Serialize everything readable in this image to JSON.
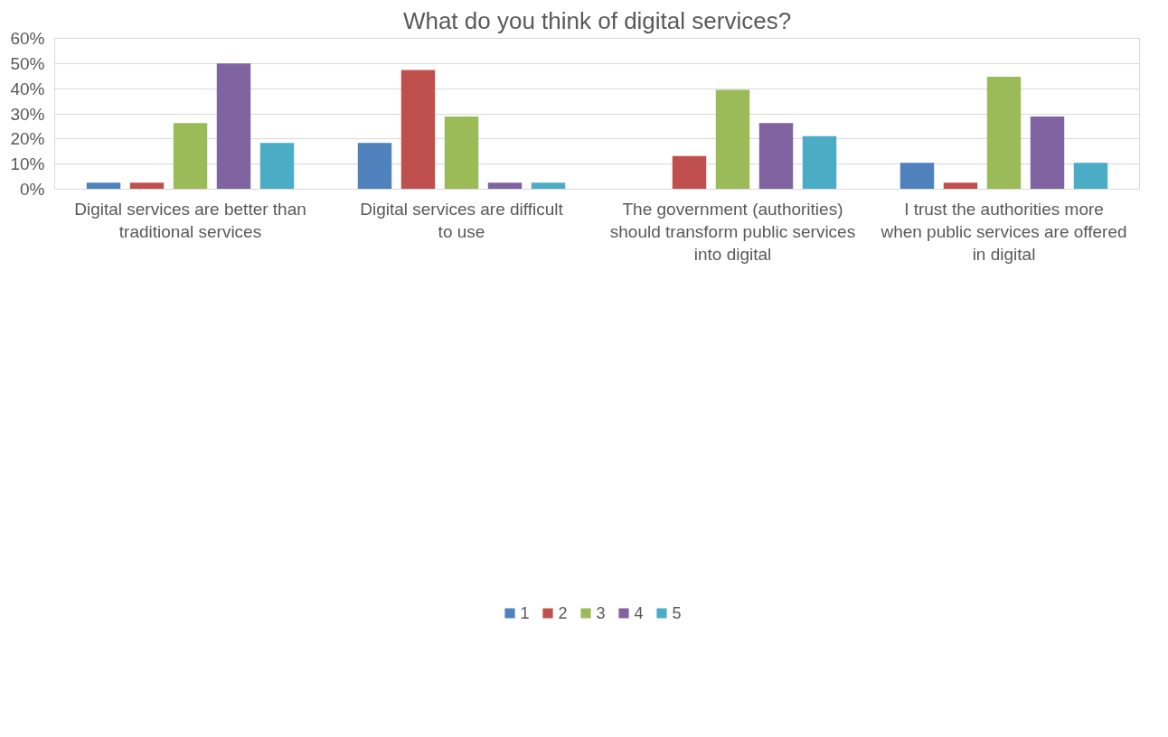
{
  "chart_data": {
    "type": "bar",
    "title": "What do you think of digital services?",
    "categories": [
      "Digital services are better than traditional services",
      "Digital services are difficult to use",
      "The government (authorities) should transform public services into digital",
      "I trust the authorities more when public services are offered in digital"
    ],
    "series": [
      {
        "name": "1",
        "color": "#4f81bd",
        "values": [
          2.6,
          18.4,
          0,
          10.5
        ]
      },
      {
        "name": "2",
        "color": "#c0504d",
        "values": [
          2.6,
          47.4,
          13.2,
          2.6
        ]
      },
      {
        "name": "3",
        "color": "#9bbb59",
        "values": [
          26.3,
          28.9,
          39.5,
          44.7
        ]
      },
      {
        "name": "4",
        "color": "#8064a2",
        "values": [
          50,
          2.6,
          26.3,
          28.9
        ]
      },
      {
        "name": "5",
        "color": "#4bacc6",
        "values": [
          18.4,
          2.6,
          21.1,
          10.5
        ]
      }
    ],
    "ylim": [
      0,
      60
    ],
    "yticks": [
      {
        "value": 0,
        "label": "0%"
      },
      {
        "value": 10,
        "label": "10%"
      },
      {
        "value": 20,
        "label": "20%"
      },
      {
        "value": 30,
        "label": "30%"
      },
      {
        "value": 40,
        "label": "40%"
      },
      {
        "value": 50,
        "label": "50%"
      },
      {
        "value": 60,
        "label": "60%"
      }
    ],
    "grid": "y",
    "legend": "bottom"
  }
}
